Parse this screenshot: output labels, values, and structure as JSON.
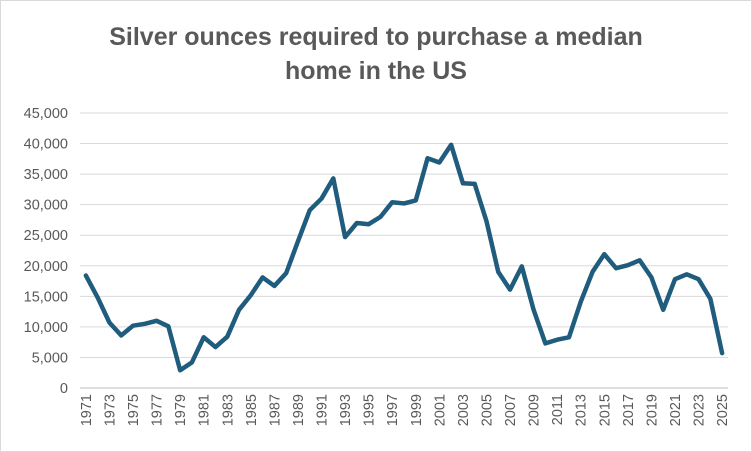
{
  "chart_data": {
    "type": "line",
    "title_lines": [
      "Silver ounces required to purchase a median",
      "home in the US"
    ],
    "xlabel": "",
    "ylabel": "",
    "ylim": [
      0,
      45000
    ],
    "yticks": [
      0,
      5000,
      10000,
      15000,
      20000,
      25000,
      30000,
      35000,
      40000,
      45000
    ],
    "ytick_labels": [
      "0",
      "5,000",
      "10,000",
      "15,000",
      "20,000",
      "25,000",
      "30,000",
      "35,000",
      "40,000",
      "45,000"
    ],
    "xtick_labels": [
      "1971",
      "1973",
      "1975",
      "1977",
      "1979",
      "1981",
      "1983",
      "1985",
      "1987",
      "1989",
      "1991",
      "1993",
      "1995",
      "1997",
      "1999",
      "2001",
      "2003",
      "2005",
      "2007",
      "2009",
      "2011",
      "2013",
      "2015",
      "2017",
      "2019",
      "2021",
      "2023",
      "2025"
    ],
    "grid": true,
    "legend": "none",
    "line_color": "#1f5c7d",
    "x": [
      1971,
      1972,
      1973,
      1974,
      1975,
      1976,
      1977,
      1978,
      1979,
      1980,
      1981,
      1982,
      1983,
      1984,
      1985,
      1986,
      1987,
      1988,
      1989,
      1990,
      1991,
      1992,
      1993,
      1994,
      1995,
      1996,
      1997,
      1998,
      1999,
      2000,
      2001,
      2002,
      2003,
      2004,
      2005,
      2006,
      2007,
      2008,
      2009,
      2010,
      2011,
      2012,
      2013,
      2014,
      2015,
      2016,
      2017,
      2018,
      2019,
      2020,
      2021,
      2022,
      2023,
      2024,
      2025
    ],
    "series": [
      {
        "values": [
          18400,
          14800,
          10700,
          8600,
          10200,
          10500,
          11000,
          10100,
          2900,
          4200,
          8300,
          6700,
          8400,
          12800,
          15200,
          18100,
          16700,
          18800,
          24000,
          29100,
          31000,
          34300,
          24700,
          27000,
          26800,
          28000,
          30400,
          30200,
          30700,
          37600,
          36900,
          39800,
          33500,
          33400,
          27300,
          19000,
          16100,
          19900,
          12800,
          7300,
          7900,
          8300,
          14100,
          19000,
          21900,
          19600,
          20100,
          20900,
          18100,
          12800,
          17800,
          18600,
          17800,
          14600,
          5700
        ]
      }
    ]
  }
}
